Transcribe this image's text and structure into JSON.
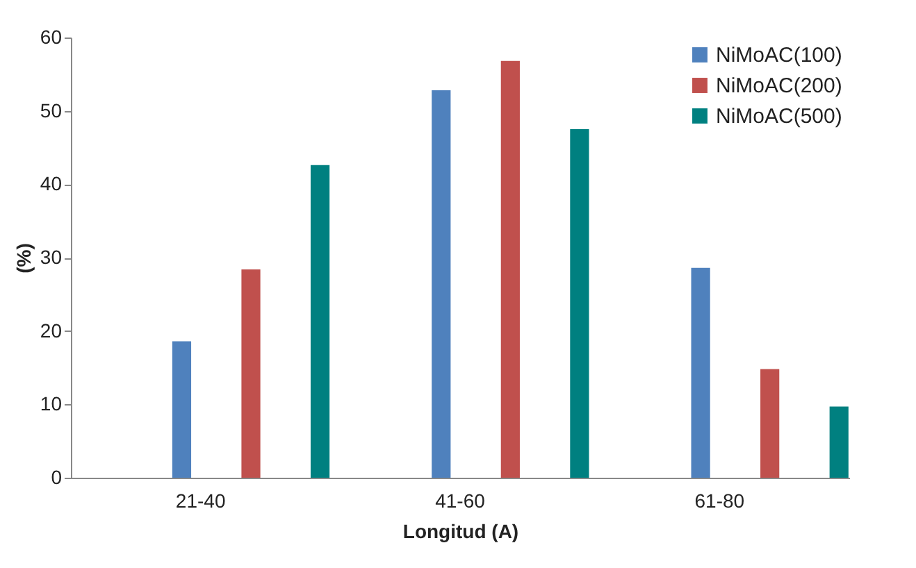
{
  "chart_data": {
    "type": "bar",
    "xlabel": "Longitud (A)",
    "ylabel": "(%)",
    "categories": [
      "21-40",
      "41-60",
      "61-80"
    ],
    "series": [
      {
        "name": "NiMoAC(100)",
        "color": "#4f81bd",
        "values": [
          18.6,
          52.8,
          28.6
        ]
      },
      {
        "name": "NiMoAC(200)",
        "color": "#c0504d",
        "values": [
          28.4,
          56.8,
          14.8
        ]
      },
      {
        "name": "NiMoAC(500)",
        "color": "#008080",
        "values": [
          42.6,
          47.5,
          9.7
        ]
      }
    ],
    "ylim": [
      0,
      60
    ],
    "yticks": [
      0,
      10,
      20,
      30,
      40,
      50,
      60
    ],
    "grid": false,
    "legend": "top right"
  }
}
